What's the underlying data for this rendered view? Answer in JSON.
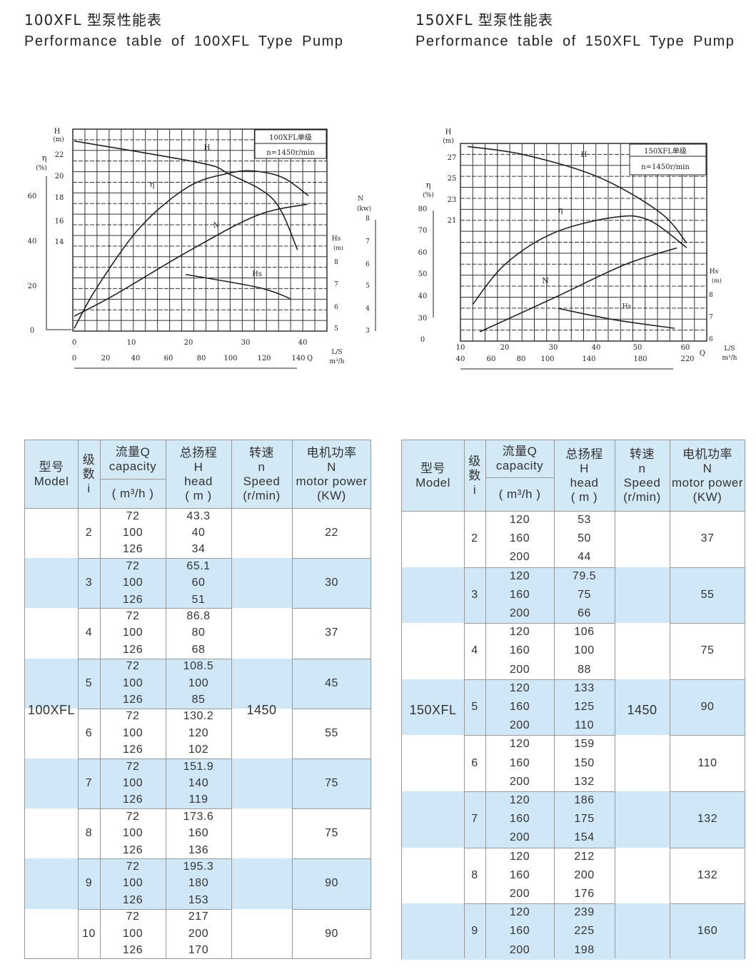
{
  "left": {
    "title_cn": "100XFL 型泵性能表",
    "title_en": "Performance table of 100XFL Type Pump",
    "chart": {
      "box_title": "100XFL单级",
      "box_speed": "n=1450r/min",
      "h_label": "H",
      "h_unit": "(m)",
      "eta_label": "η",
      "eta_unit": "(%)",
      "n_label": "N",
      "n_unit": "(kw)",
      "hs_label": "Hs",
      "hs_unit": "(m)",
      "q_label": "Q",
      "q_unit_top": "L/S",
      "q_unit_bottom": "m³/h",
      "h_ticks": [
        "22",
        "20",
        "18",
        "16",
        "14"
      ],
      "eta_ticks": [
        "60",
        "40",
        "20",
        "0"
      ],
      "n_ticks": [
        "8",
        "7",
        "6",
        "5",
        "4",
        "3"
      ],
      "hs_ticks": [
        "8",
        "7",
        "6",
        "5"
      ],
      "q_ls_ticks": [
        "0",
        "10",
        "20",
        "30",
        "40"
      ],
      "q_m3h_ticks": [
        "0",
        "20",
        "40",
        "60",
        "80",
        "100",
        "120",
        "140"
      ],
      "curve_labels": {
        "H": "H",
        "eta": "η",
        "N": "N",
        "Hs": "Hs"
      },
      "curves": {
        "H": [
          [
            0,
            22.6
          ],
          [
            22,
            21.6
          ],
          [
            27,
            21.1
          ],
          [
            34.9,
            19.9
          ],
          [
            39.1,
            17.6
          ]
        ],
        "eta": [
          [
            0,
            0.6
          ],
          [
            4,
            19
          ],
          [
            11.6,
            46
          ],
          [
            20,
            64
          ],
          [
            27,
            70
          ],
          [
            31.6,
            71
          ],
          [
            36.6,
            68
          ],
          [
            41,
            60
          ]
        ],
        "N": [
          [
            0,
            3.6
          ],
          [
            7.4,
            4.6
          ],
          [
            20,
            6.5
          ],
          [
            32,
            8.1
          ],
          [
            40.8,
            8.6
          ]
        ],
        "Hs": [
          [
            19.5,
            7.4
          ],
          [
            32.4,
            6.8
          ],
          [
            37.9,
            6.3
          ]
        ]
      }
    },
    "table": {
      "headers": {
        "model_cn": "型号",
        "model_en": "Model",
        "stage_cn": "级数",
        "stage_en": "i",
        "q_cn": "流量Q",
        "q_en": "capacity",
        "q_unit": "( m³/h )",
        "h_cn": "总扬程",
        "h_sym": "H",
        "h_en": "head",
        "h_unit": "( m )",
        "n_cn": "转速",
        "n_sym": "n",
        "n_en": "Speed",
        "n_unit": "(r/min)",
        "p_cn": "电机功率",
        "p_sym": "N",
        "p_en": "motor power",
        "p_unit": "(KW)"
      },
      "model": "100XFL",
      "speed": "1450",
      "rows": [
        {
          "stage": "2",
          "q": [
            "72",
            "100",
            "126"
          ],
          "h": [
            "43.3",
            "40",
            "34"
          ],
          "power": "22"
        },
        {
          "stage": "3",
          "q": [
            "72",
            "100",
            "126"
          ],
          "h": [
            "65.1",
            "60",
            "51"
          ],
          "power": "30"
        },
        {
          "stage": "4",
          "q": [
            "72",
            "100",
            "126"
          ],
          "h": [
            "86.8",
            "80",
            "68"
          ],
          "power": "37"
        },
        {
          "stage": "5",
          "q": [
            "72",
            "100",
            "126"
          ],
          "h": [
            "108.5",
            "100",
            "85"
          ],
          "power": "45"
        },
        {
          "stage": "6",
          "q": [
            "72",
            "100",
            "126"
          ],
          "h": [
            "130.2",
            "120",
            "102"
          ],
          "power": "55"
        },
        {
          "stage": "7",
          "q": [
            "72",
            "100",
            "126"
          ],
          "h": [
            "151.9",
            "140",
            "119"
          ],
          "power": "75"
        },
        {
          "stage": "8",
          "q": [
            "72",
            "100",
            "126"
          ],
          "h": [
            "173.6",
            "160",
            "136"
          ],
          "power": "75"
        },
        {
          "stage": "9",
          "q": [
            "72",
            "100",
            "126"
          ],
          "h": [
            "195.3",
            "180",
            "153"
          ],
          "power": "90"
        },
        {
          "stage": "10",
          "q": [
            "72",
            "100",
            "126"
          ],
          "h": [
            "217",
            "200",
            "170"
          ],
          "power": "90"
        }
      ]
    }
  },
  "right": {
    "title_cn": "150XFL 型泵性能表",
    "title_en": "Performance table of 150XFL Type Pump",
    "chart": {
      "box_title": "150XFL单级",
      "box_speed": "n=1450r/min",
      "h_label": "H",
      "h_unit": "(m)",
      "eta_label": "η",
      "eta_unit": "(%)",
      "hs_label": "Hs",
      "hs_unit": "(m)",
      "q_label": "Q",
      "q_unit_top": "L/S",
      "q_unit_bottom": "m³/h",
      "h_ticks": [
        "27",
        "25",
        "23",
        "21"
      ],
      "eta_ticks": [
        "80",
        "70",
        "60",
        "50",
        "40",
        "30",
        "0"
      ],
      "hs_ticks": [
        "8",
        "7",
        "6"
      ],
      "q_ls_ticks": [
        "10",
        "20",
        "30",
        "40",
        "50",
        "60"
      ],
      "q_m3h_ticks": [
        "40",
        "60",
        "80",
        "100",
        "140",
        "180",
        "220"
      ],
      "curve_labels": {
        "H": "H",
        "eta": "η",
        "N": "N",
        "Hs": "Hs"
      },
      "curves": {
        "H": [
          [
            11.6,
            28.0
          ],
          [
            24.3,
            27.2
          ],
          [
            40.6,
            25.1
          ],
          [
            54.4,
            21.7
          ],
          [
            60.3,
            18.8
          ]
        ],
        "eta": [
          [
            12.7,
            36
          ],
          [
            20,
            54.5
          ],
          [
            30.6,
            68.6
          ],
          [
            43.8,
            75.8
          ],
          [
            51.7,
            74.8
          ],
          [
            60.3,
            62
          ]
        ],
        "Hs": [
          [
            31.7,
            7.35
          ],
          [
            43.8,
            6.85
          ],
          [
            57.6,
            6.45
          ]
        ]
      }
    },
    "table": {
      "headers": {
        "model_cn": "型号",
        "model_en": "Model",
        "stage_cn": "级数",
        "stage_en": "i",
        "q_cn": "流量Q",
        "q_en": "capacity",
        "q_unit": "( m³/h )",
        "h_cn": "总扬程",
        "h_sym": "H",
        "h_en": "head",
        "h_unit": "( m )",
        "n_cn": "转速",
        "n_sym": "n",
        "n_en": "Speed",
        "n_unit": "(r/min)",
        "p_cn": "电机功率",
        "p_sym": "N",
        "p_en": "motor power",
        "p_unit": "(KW)"
      },
      "model": "150XFL",
      "speed": "1450",
      "rows": [
        {
          "stage": "2",
          "q": [
            "120",
            "160",
            "200"
          ],
          "h": [
            "53",
            "50",
            "44"
          ],
          "power": "37"
        },
        {
          "stage": "3",
          "q": [
            "120",
            "160",
            "200"
          ],
          "h": [
            "79.5",
            "75",
            "66"
          ],
          "power": "55"
        },
        {
          "stage": "4",
          "q": [
            "120",
            "160",
            "200"
          ],
          "h": [
            "106",
            "100",
            "88"
          ],
          "power": "75"
        },
        {
          "stage": "5",
          "q": [
            "120",
            "160",
            "200"
          ],
          "h": [
            "133",
            "125",
            "110"
          ],
          "power": "90"
        },
        {
          "stage": "6",
          "q": [
            "120",
            "160",
            "200"
          ],
          "h": [
            "159",
            "150",
            "132"
          ],
          "power": "110"
        },
        {
          "stage": "7",
          "q": [
            "120",
            "160",
            "200"
          ],
          "h": [
            "186",
            "175",
            "154"
          ],
          "power": "132"
        },
        {
          "stage": "8",
          "q": [
            "120",
            "160",
            "200"
          ],
          "h": [
            "212",
            "200",
            "176"
          ],
          "power": "132"
        },
        {
          "stage": "9",
          "q": [
            "120",
            "160",
            "200"
          ],
          "h": [
            "239",
            "225",
            "198"
          ],
          "power": "160"
        }
      ]
    }
  }
}
